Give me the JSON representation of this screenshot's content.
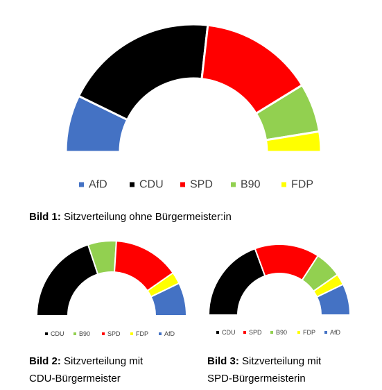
{
  "colors": {
    "AfD": "#4472C4",
    "CDU": "#000000",
    "SPD": "#FF0000",
    "B90": "#92D050",
    "FDP": "#FFFF00"
  },
  "chart_data": [
    {
      "type": "pie",
      "variant": "semicircle-parliament",
      "caption_bold": "Bild 1:",
      "caption_text": "Sitzverteilung ohne Bürgermeister:in",
      "segments": [
        {
          "label": "AfD",
          "value": 14
        },
        {
          "label": "CDU",
          "value": 38
        },
        {
          "label": "SPD",
          "value": 28
        },
        {
          "label": "B90",
          "value": 12
        },
        {
          "label": "FDP",
          "value": 5
        }
      ],
      "legend": [
        "AfD",
        "CDU",
        "SPD",
        "B90",
        "FDP"
      ]
    },
    {
      "type": "pie",
      "variant": "semicircle-parliament",
      "caption_bold": "Bild 2:",
      "caption_line1": "Sitzverteilung mit",
      "caption_line2": "CDU-Bürgermeister",
      "segments": [
        {
          "label": "CDU",
          "value": 39
        },
        {
          "label": "B90",
          "value": 12
        },
        {
          "label": "SPD",
          "value": 28
        },
        {
          "label": "FDP",
          "value": 5
        },
        {
          "label": "AfD",
          "value": 14
        }
      ],
      "legend": [
        "CDU",
        "B90",
        "SPD",
        "FDP",
        "AfD"
      ]
    },
    {
      "type": "pie",
      "variant": "semicircle-parliament",
      "caption_bold": "Bild 3:",
      "caption_line1": "Sitzverteilung mit",
      "caption_line2": "SPD-Bürgermeisterin",
      "segments": [
        {
          "label": "CDU",
          "value": 38
        },
        {
          "label": "SPD",
          "value": 29
        },
        {
          "label": "B90",
          "value": 12
        },
        {
          "label": "FDP",
          "value": 5
        },
        {
          "label": "AfD",
          "value": 14
        }
      ],
      "legend": [
        "CDU",
        "SPD",
        "B90",
        "FDP",
        "AfD"
      ]
    }
  ]
}
